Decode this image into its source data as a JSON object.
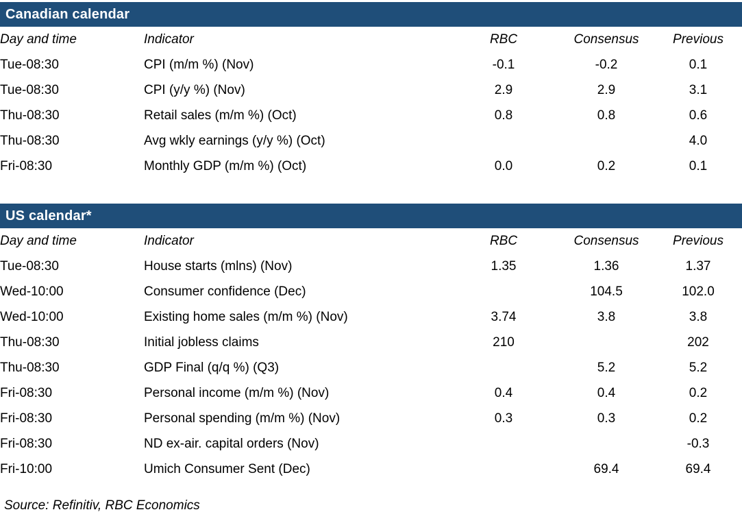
{
  "page": {
    "accent_color": "#1F4E79",
    "bar_text_color": "#ffffff",
    "body_text_color": "#000000",
    "background_color": "#ffffff"
  },
  "columns": {
    "day": "Day and time",
    "indicator": "Indicator",
    "rbc": "RBC",
    "consensus": "Consensus",
    "previous": "Previous"
  },
  "tables": [
    {
      "title": "Canadian calendar",
      "rows": [
        {
          "day": "Tue-08:30",
          "indicator": "CPI (m/m %) (Nov)",
          "rbc": "-0.1",
          "consensus": "-0.2",
          "previous": "0.1"
        },
        {
          "day": "Tue-08:30",
          "indicator": "CPI (y/y %) (Nov)",
          "rbc": "2.9",
          "consensus": "2.9",
          "previous": "3.1"
        },
        {
          "day": "Thu-08:30",
          "indicator": "Retail sales (m/m %) (Oct)",
          "rbc": "0.8",
          "consensus": "0.8",
          "previous": "0.6"
        },
        {
          "day": "Thu-08:30",
          "indicator": "Avg wkly earnings (y/y %) (Oct)",
          "rbc": "",
          "consensus": "",
          "previous": "4.0"
        },
        {
          "day": "Fri-08:30",
          "indicator": "Monthly GDP (m/m %) (Oct)",
          "rbc": "0.0",
          "consensus": "0.2",
          "previous": "0.1"
        }
      ]
    },
    {
      "title": "US calendar*",
      "rows": [
        {
          "day": "Tue-08:30",
          "indicator": "House starts (mlns) (Nov)",
          "rbc": "1.35",
          "consensus": "1.36",
          "previous": "1.37"
        },
        {
          "day": "Wed-10:00",
          "indicator": "Consumer confidence (Dec)",
          "rbc": "",
          "consensus": "104.5",
          "previous": "102.0"
        },
        {
          "day": "Wed-10:00",
          "indicator": "Existing home sales (m/m %) (Nov)",
          "rbc": "3.74",
          "consensus": "3.8",
          "previous": "3.8"
        },
        {
          "day": "Thu-08:30",
          "indicator": "Initial jobless claims",
          "rbc": "210",
          "consensus": "",
          "previous": "202"
        },
        {
          "day": "Thu-08:30",
          "indicator": "GDP Final (q/q %) (Q3)",
          "rbc": "",
          "consensus": "5.2",
          "previous": "5.2"
        },
        {
          "day": "Fri-08:30",
          "indicator": "Personal income (m/m %) (Nov)",
          "rbc": "0.4",
          "consensus": "0.4",
          "previous": "0.2"
        },
        {
          "day": "Fri-08:30",
          "indicator": "Personal spending (m/m %) (Nov)",
          "rbc": "0.3",
          "consensus": "0.3",
          "previous": "0.2"
        },
        {
          "day": "Fri-08:30",
          "indicator": "ND ex-air. capital orders (Nov)",
          "rbc": "",
          "consensus": "",
          "previous": "-0.3"
        },
        {
          "day": "Fri-10:00",
          "indicator": "Umich Consumer Sent (Dec)",
          "rbc": "",
          "consensus": "69.4",
          "previous": "69.4"
        }
      ]
    }
  ],
  "source_note": "Source: Refinitiv,  RBC Economics"
}
